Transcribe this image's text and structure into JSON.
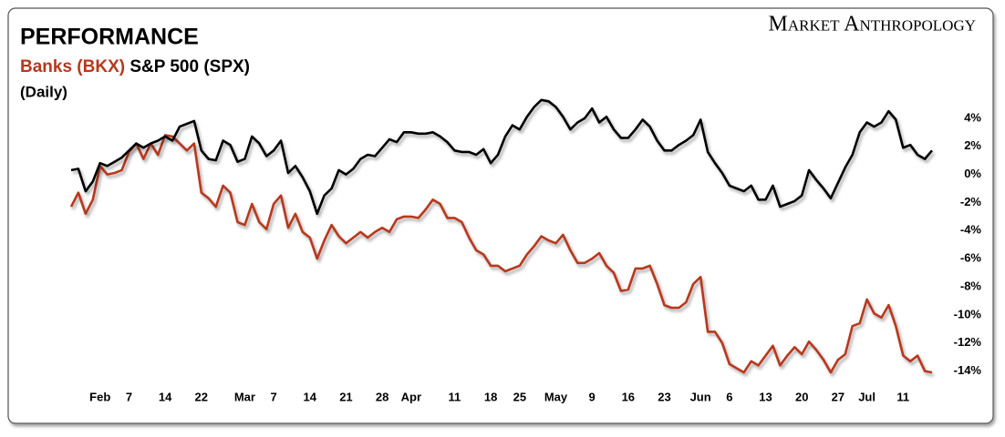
{
  "chart_data": {
    "type": "line",
    "brand": "Market Anthropology",
    "title": "PERFORMANCE",
    "subtitle": "(Daily)",
    "categories": [
      null,
      null,
      null,
      null,
      "Feb",
      null,
      null,
      null,
      "7",
      null,
      null,
      null,
      null,
      "14",
      null,
      null,
      null,
      null,
      "22",
      null,
      null,
      null,
      null,
      null,
      "Mar",
      null,
      null,
      null,
      "7",
      null,
      null,
      null,
      null,
      "14",
      null,
      null,
      null,
      null,
      "21",
      null,
      null,
      null,
      null,
      "28",
      null,
      null,
      null,
      "Apr",
      null,
      null,
      null,
      null,
      null,
      "11",
      null,
      null,
      null,
      null,
      "18",
      null,
      null,
      null,
      "25",
      null,
      null,
      null,
      null,
      "May",
      null,
      null,
      null,
      null,
      "9",
      null,
      null,
      null,
      null,
      "16",
      null,
      null,
      null,
      null,
      "23",
      null,
      null,
      null,
      null,
      "Jun",
      null,
      null,
      null,
      "6",
      null,
      null,
      null,
      null,
      "13",
      null,
      null,
      null,
      null,
      "20",
      null,
      null,
      null,
      null,
      "27",
      null,
      null,
      null,
      "Jul",
      null,
      null,
      null,
      null,
      "11",
      null,
      null,
      null,
      null
    ],
    "series": [
      {
        "name": "Banks (BKX)",
        "color": "#b8381d",
        "values": [
          -2.3,
          -1.3,
          -2.8,
          -1.8,
          0.6,
          0.0,
          0.1,
          0.3,
          1.6,
          2.2,
          1.1,
          2.2,
          1.4,
          2.8,
          2.7,
          2.2,
          1.7,
          2.2,
          -1.3,
          -1.7,
          -2.3,
          -0.8,
          -1.3,
          -3.4,
          -3.6,
          -2.1,
          -3.4,
          -3.9,
          -2.1,
          -1.5,
          -3.8,
          -2.8,
          -4.1,
          -4.5,
          -6.0,
          -4.7,
          -3.6,
          -4.4,
          -4.9,
          -4.5,
          -4.1,
          -4.5,
          -4.1,
          -3.8,
          -4.1,
          -3.2,
          -3.0,
          -3.0,
          -3.1,
          -2.5,
          -1.8,
          -2.1,
          -3.1,
          -3.1,
          -3.4,
          -4.5,
          -5.4,
          -5.7,
          -6.5,
          -6.5,
          -6.9,
          -6.7,
          -6.5,
          -5.7,
          -5.1,
          -4.4,
          -4.7,
          -4.9,
          -4.3,
          -5.4,
          -6.3,
          -6.3,
          -6.0,
          -5.6,
          -6.5,
          -7.0,
          -8.3,
          -8.2,
          -6.7,
          -6.7,
          -6.5,
          -7.8,
          -9.3,
          -9.5,
          -9.5,
          -9.1,
          -7.8,
          -7.3,
          -11.2,
          -11.2,
          -12.0,
          -13.5,
          -13.8,
          -14.1,
          -13.3,
          -13.6,
          -12.9,
          -12.2,
          -13.6,
          -12.9,
          -12.3,
          -12.8,
          -11.9,
          -12.5,
          -13.2,
          -14.1,
          -13.2,
          -12.8,
          -10.8,
          -10.6,
          -8.9,
          -9.9,
          -10.2,
          -9.3,
          -10.8,
          -12.9,
          -13.3,
          -12.9,
          -14.0,
          -14.1
        ]
      },
      {
        "name": "S&P 500 (SPX)",
        "color": "#000000",
        "values": [
          0.3,
          0.4,
          -1.2,
          -0.5,
          0.8,
          0.6,
          0.9,
          1.2,
          1.7,
          2.2,
          1.9,
          2.2,
          2.4,
          2.7,
          2.4,
          3.4,
          3.6,
          3.8,
          1.7,
          1.1,
          1.0,
          2.4,
          2.1,
          0.9,
          1.1,
          2.7,
          2.2,
          1.3,
          1.7,
          2.4,
          0.1,
          0.6,
          -0.2,
          -1.2,
          -2.8,
          -1.5,
          -1.0,
          0.3,
          0.0,
          0.4,
          1.1,
          1.4,
          1.3,
          1.9,
          2.5,
          2.3,
          3.0,
          3.0,
          2.9,
          2.9,
          3.0,
          2.7,
          2.3,
          1.7,
          1.6,
          1.6,
          1.4,
          1.8,
          0.8,
          1.4,
          2.7,
          3.5,
          3.2,
          4.1,
          4.8,
          5.3,
          5.2,
          4.8,
          4.1,
          3.2,
          3.7,
          4.0,
          4.7,
          3.7,
          4.1,
          3.2,
          2.6,
          2.6,
          3.2,
          3.9,
          3.4,
          2.4,
          1.7,
          1.7,
          2.1,
          2.4,
          2.8,
          3.9,
          1.6,
          0.8,
          0.1,
          -0.8,
          -1.0,
          -1.2,
          -0.8,
          -1.8,
          -1.8,
          -0.8,
          -2.3,
          -2.1,
          -1.9,
          -1.5,
          0.3,
          -0.4,
          -1.0,
          -1.7,
          -0.6,
          0.5,
          1.4,
          3.0,
          3.7,
          3.4,
          3.7,
          4.5,
          3.9,
          1.9,
          2.1,
          1.4,
          1.1,
          1.7
        ]
      }
    ],
    "ylim": [
      -15,
      6
    ],
    "yticks": [
      {
        "value": 4,
        "label": "4%"
      },
      {
        "value": 2,
        "label": "2%"
      },
      {
        "value": 0,
        "label": "0%"
      },
      {
        "value": -2,
        "label": "-2%"
      },
      {
        "value": -4,
        "label": "-4%"
      },
      {
        "value": -6,
        "label": "-6%"
      },
      {
        "value": -8,
        "label": "-8%"
      },
      {
        "value": -10,
        "label": "-10%"
      },
      {
        "value": -12,
        "label": "-12%"
      },
      {
        "value": -14,
        "label": "-14%"
      }
    ],
    "grid": false
  }
}
